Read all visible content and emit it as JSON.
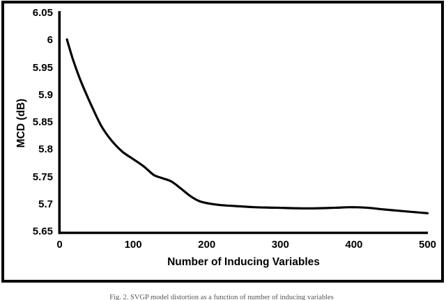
{
  "figure": {
    "caption": "Fig. 2. SVGP model distortion as a function of number of inducing variables"
  },
  "colors": {
    "background": "#ffffff",
    "border": "#000000",
    "line": "#000000",
    "text": "#000000",
    "caption_text": "#555555"
  },
  "chart_data": {
    "type": "line",
    "title": "",
    "xlabel": "Number of Inducing Variables",
    "ylabel": "MCD (dB)",
    "xlim": [
      0,
      500
    ],
    "ylim": [
      5.65,
      6.05
    ],
    "x_ticks": [
      0,
      100,
      200,
      300,
      400,
      500
    ],
    "x_tick_labels": [
      "0",
      "100",
      "200",
      "300",
      "400",
      "500"
    ],
    "y_ticks": [
      6.05,
      6.0,
      5.95,
      5.9,
      5.85,
      5.8,
      5.75,
      5.7,
      5.65
    ],
    "y_tick_labels": [
      "6.05",
      "6",
      "5.95",
      "5.9",
      "5.85",
      "5.8",
      "5.75",
      "5.7",
      "5.65"
    ],
    "grid": false,
    "legend": null,
    "series": [
      {
        "name": "MCD",
        "color": "#000000",
        "points": [
          [
            10,
            6.002
          ],
          [
            18,
            5.966
          ],
          [
            27,
            5.932
          ],
          [
            36,
            5.903
          ],
          [
            45,
            5.876
          ],
          [
            57,
            5.843
          ],
          [
            70,
            5.818
          ],
          [
            85,
            5.797
          ],
          [
            100,
            5.783
          ],
          [
            115,
            5.769
          ],
          [
            128,
            5.754
          ],
          [
            140,
            5.748
          ],
          [
            152,
            5.742
          ],
          [
            165,
            5.729
          ],
          [
            178,
            5.715
          ],
          [
            190,
            5.706
          ],
          [
            202,
            5.702
          ],
          [
            218,
            5.699
          ],
          [
            240,
            5.697
          ],
          [
            265,
            5.695
          ],
          [
            295,
            5.694
          ],
          [
            325,
            5.693
          ],
          [
            350,
            5.693
          ],
          [
            375,
            5.694
          ],
          [
            395,
            5.695
          ],
          [
            418,
            5.694
          ],
          [
            440,
            5.691
          ],
          [
            465,
            5.688
          ],
          [
            500,
            5.684
          ]
        ]
      }
    ]
  }
}
